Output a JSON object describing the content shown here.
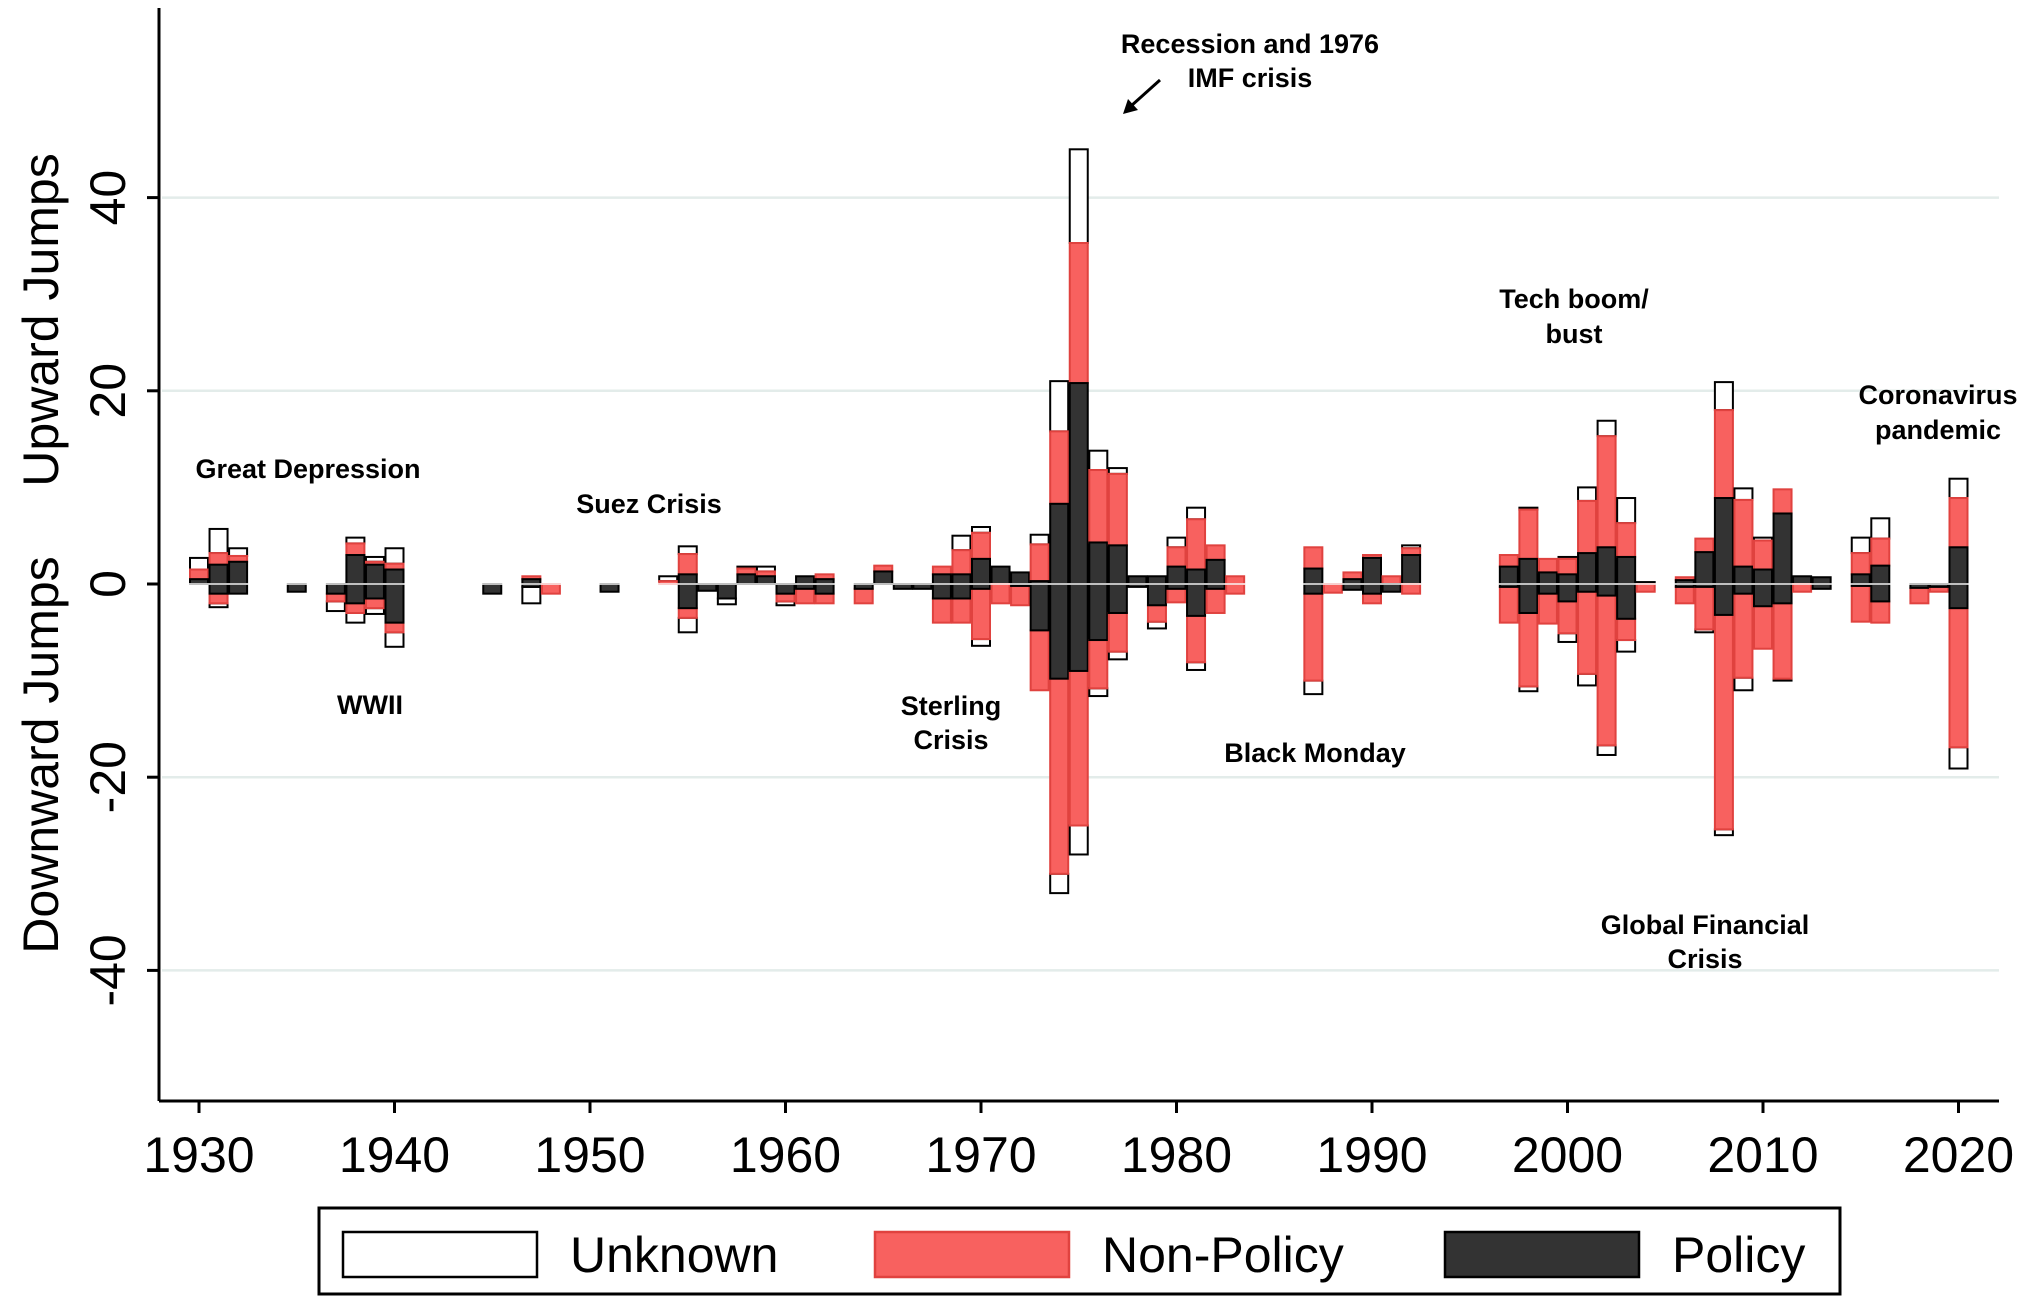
{
  "chart_data": {
    "type": "bar",
    "ylabel_up": "Upward Jumps",
    "ylabel_down": "Downward Jumps",
    "ylim": [
      -40,
      45
    ],
    "yticks": [
      -40,
      -20,
      0,
      20,
      40
    ],
    "ytick_labels": [
      "-40",
      "-20",
      "0",
      "20",
      "40"
    ],
    "xlim": [
      1928,
      2022
    ],
    "xticks": [
      1930,
      1940,
      1950,
      1960,
      1970,
      1980,
      1990,
      2000,
      2010,
      2020
    ],
    "xtick_labels": [
      "1930",
      "1940",
      "1950",
      "1960",
      "1970",
      "1980",
      "1990",
      "2000",
      "2010",
      "2020"
    ],
    "grid": true,
    "legend_position": "bottom",
    "series_names": [
      "Unknown",
      "Non-Policy",
      "Policy"
    ],
    "colors": {
      "Unknown": "#ffffff",
      "Non-Policy": "#f8615f",
      "Policy": "#333333",
      "grid": "#e3ecea",
      "axis": "#000000"
    },
    "note": "Stacked columns: Policy, Non-Policy and Unknown segments stacked upward (upward jumps) and downward (downward jumps) from zero.",
    "years": [
      1930,
      1931,
      1932,
      1935,
      1937,
      1938,
      1939,
      1940,
      1945,
      1947,
      1948,
      1951,
      1954,
      1955,
      1956,
      1957,
      1958,
      1959,
      1960,
      1961,
      1962,
      1964,
      1965,
      1966,
      1967,
      1968,
      1969,
      1970,
      1971,
      1972,
      1973,
      1974,
      1975,
      1976,
      1977,
      1978,
      1979,
      1980,
      1981,
      1982,
      1983,
      1987,
      1988,
      1989,
      1990,
      1991,
      1992,
      1997,
      1998,
      1999,
      2000,
      2001,
      2002,
      2003,
      2004,
      2006,
      2007,
      2008,
      2009,
      2010,
      2011,
      2012,
      2013,
      2015,
      2016,
      2018,
      2019,
      2020
    ],
    "up": {
      "Policy": [
        0.5,
        2.0,
        2.3,
        0,
        0,
        3.0,
        2.0,
        1.5,
        0,
        0.5,
        0,
        0,
        0,
        1.0,
        0,
        0,
        1.0,
        0.8,
        0,
        0.8,
        0.5,
        0,
        1.3,
        0,
        0,
        1.0,
        1.0,
        2.6,
        1.8,
        1.2,
        0.3,
        8.3,
        20.8,
        4.3,
        4.0,
        0.8,
        0.8,
        1.8,
        1.5,
        2.5,
        0,
        1.6,
        0,
        0.5,
        2.7,
        0,
        3.0,
        1.8,
        2.6,
        1.2,
        1.0,
        3.2,
        3.8,
        2.8,
        0.2,
        0.4,
        3.3,
        8.9,
        1.8,
        1.5,
        7.3,
        0.8,
        0.7,
        1.0,
        1.9,
        0,
        0,
        3.8
      ],
      "Non-Policy": [
        1.0,
        1.2,
        0.6,
        0,
        0,
        1.2,
        0.3,
        0.6,
        0,
        0.3,
        0,
        0,
        0.3,
        2.1,
        0,
        0,
        0.6,
        0.5,
        0,
        0,
        0.5,
        0,
        0.6,
        0,
        0,
        0.8,
        2.5,
        2.7,
        0,
        0,
        3.8,
        7.5,
        14.5,
        7.5,
        7.4,
        0,
        0,
        2.0,
        5.2,
        1.5,
        0.8,
        2.2,
        0,
        0.7,
        0.3,
        0.8,
        0.7,
        1.2,
        5.1,
        1.4,
        1.6,
        5.4,
        11.5,
        3.5,
        0,
        0.3,
        1.4,
        9.1,
        6.9,
        3.0,
        2.5,
        0,
        0,
        2.2,
        2.8,
        0,
        0,
        5.1
      ],
      "Unknown": [
        1.2,
        2.5,
        0.8,
        0,
        0,
        0.6,
        0.5,
        1.6,
        0,
        0,
        0,
        0,
        0.5,
        0.8,
        0,
        0,
        0.2,
        0.5,
        0,
        0,
        0,
        0,
        0,
        0,
        0,
        0,
        1.5,
        0.6,
        0,
        0,
        1.0,
        5.2,
        9.7,
        2.0,
        0.6,
        0,
        0,
        1.0,
        1.2,
        0,
        0,
        0,
        0,
        0,
        0,
        0,
        0.3,
        0,
        0.2,
        0,
        0.2,
        1.4,
        1.6,
        2.6,
        0,
        0,
        0,
        2.9,
        1.2,
        0.3,
        0,
        0,
        0,
        1.6,
        2.1,
        0,
        0,
        2.0
      ]
    },
    "down": {
      "Policy": [
        0,
        -1.0,
        -1.0,
        -0.8,
        -1.0,
        -2.0,
        -1.5,
        -4.0,
        -1.0,
        -0.3,
        0,
        -0.8,
        0,
        -2.5,
        -0.7,
        -1.5,
        0,
        0,
        -1.0,
        -0.5,
        -1.0,
        -0.5,
        0,
        -0.5,
        -0.5,
        -1.5,
        -1.5,
        -0.5,
        0,
        -0.2,
        -4.8,
        -9.8,
        -9.0,
        -5.8,
        -3.0,
        -0.3,
        -2.2,
        -0.5,
        -3.3,
        -0.5,
        0,
        -1.0,
        0,
        -0.6,
        -1.0,
        -0.8,
        0,
        -0.3,
        -3.0,
        -1.0,
        -1.8,
        -0.8,
        -1.2,
        -3.6,
        0,
        -0.3,
        -0.3,
        -3.2,
        -1.0,
        -2.3,
        -2.0,
        0,
        -0.5,
        -0.2,
        -1.8,
        -0.4,
        -0.3,
        -2.5
      ],
      "Non-Policy": [
        0,
        -1.0,
        0,
        0,
        -0.8,
        -1.0,
        -1.0,
        -1.0,
        0,
        0,
        -1.0,
        0,
        0,
        -1.0,
        0,
        0,
        0,
        0,
        -0.8,
        -1.5,
        -1.0,
        -1.5,
        0,
        0,
        0,
        -2.5,
        -2.5,
        -5.2,
        -2.0,
        -2.0,
        -6.2,
        -20.2,
        -16.0,
        -5.0,
        -4.0,
        0,
        -1.7,
        -1.4,
        -4.8,
        -2.5,
        -1.0,
        -9.0,
        -0.9,
        0,
        -1.0,
        0,
        -1.0,
        -3.7,
        -7.6,
        -3.1,
        -3.3,
        -8.5,
        -15.5,
        -2.2,
        -0.8,
        -1.7,
        -4.4,
        -22.2,
        -8.7,
        -4.4,
        -7.8,
        -0.8,
        0,
        -3.7,
        -2.2,
        -1.6,
        -0.5,
        -14.4
      ],
      "Unknown": [
        0,
        -0.4,
        0,
        0,
        -1.0,
        -1.0,
        -0.6,
        -1.5,
        0,
        -1.7,
        0,
        0,
        0,
        -1.5,
        0,
        -0.6,
        0,
        0,
        -0.4,
        0,
        0,
        0,
        0,
        0,
        0,
        0,
        0,
        -0.7,
        0,
        0,
        0,
        -2.0,
        -3.0,
        -0.8,
        -0.8,
        0,
        -0.7,
        0,
        -0.8,
        0,
        0,
        -1.4,
        0,
        0,
        0,
        0,
        0,
        0,
        -0.5,
        0,
        -0.9,
        -1.2,
        -1.0,
        -1.2,
        0,
        0,
        -0.3,
        -0.6,
        -1.3,
        0,
        -0.2,
        0,
        0,
        0,
        0,
        0,
        0,
        -2.2
      ]
    },
    "annotations": [
      {
        "id": "great-depression",
        "lines": [
          "Great Depression"
        ]
      },
      {
        "id": "wwii",
        "lines": [
          "WWII"
        ]
      },
      {
        "id": "suez",
        "lines": [
          "Suez Crisis"
        ]
      },
      {
        "id": "sterling",
        "lines": [
          "Sterling",
          "Crisis"
        ]
      },
      {
        "id": "imf",
        "lines": [
          "Recession and 1976",
          "IMF crisis"
        ]
      },
      {
        "id": "black-monday",
        "lines": [
          "Black Monday"
        ]
      },
      {
        "id": "tech",
        "lines": [
          "Tech boom/",
          "bust"
        ]
      },
      {
        "id": "gfc",
        "lines": [
          "Global Financial",
          "Crisis"
        ]
      },
      {
        "id": "covid",
        "lines": [
          "Coronavirus",
          "pandemic"
        ]
      }
    ]
  },
  "legend": {
    "items": [
      {
        "key": "unknown",
        "label": "Unknown"
      },
      {
        "key": "non_policy",
        "label": "Non-Policy"
      },
      {
        "key": "policy",
        "label": "Policy"
      }
    ]
  }
}
